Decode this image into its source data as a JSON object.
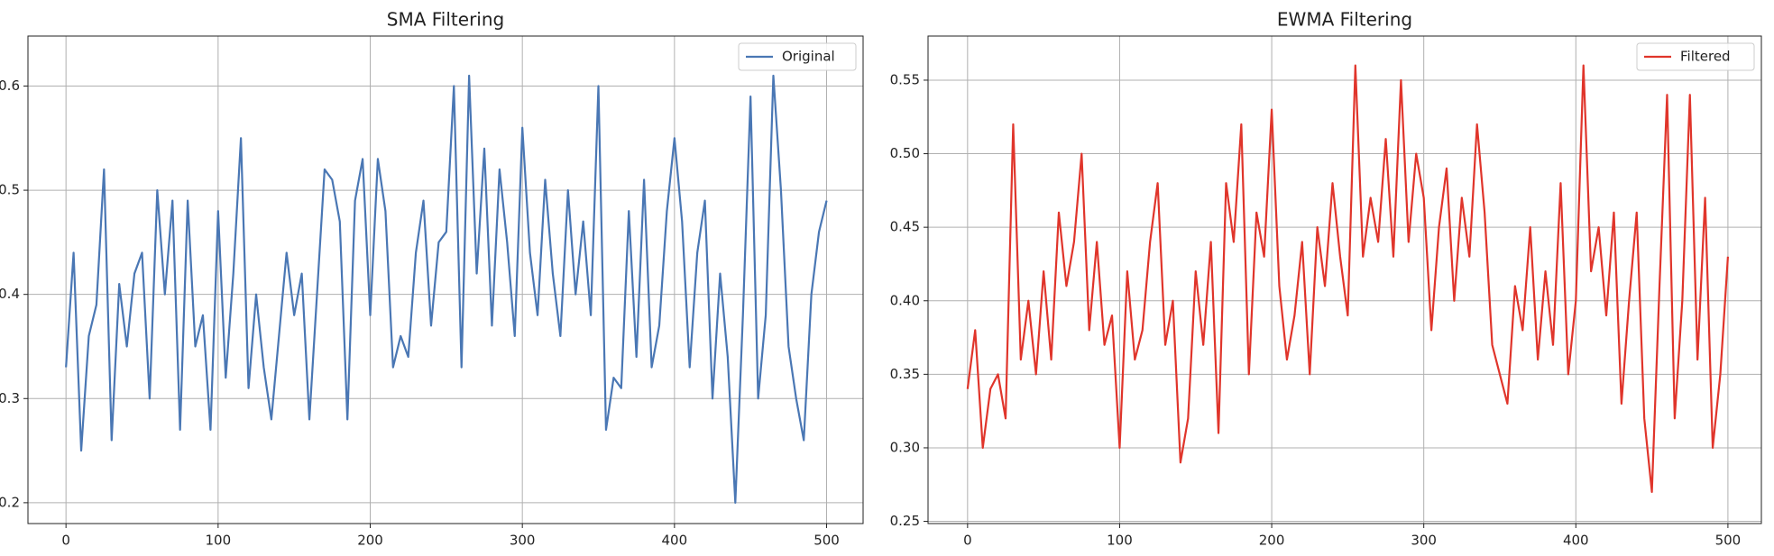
{
  "chart_data": [
    {
      "type": "line",
      "title": "SMA Filtering",
      "x": [
        0,
        5,
        10,
        15,
        20,
        25,
        30,
        35,
        40,
        45,
        50,
        55,
        60,
        65,
        70,
        75,
        80,
        85,
        90,
        95,
        100,
        105,
        110,
        115,
        120,
        125,
        130,
        135,
        140,
        145,
        150,
        155,
        160,
        165,
        170,
        175,
        180,
        185,
        190,
        195,
        200,
        205,
        210,
        215,
        220,
        225,
        230,
        235,
        240,
        245,
        250,
        255,
        260,
        265,
        270,
        275,
        280,
        285,
        290,
        295,
        300,
        305,
        310,
        315,
        320,
        325,
        330,
        335,
        340,
        345,
        350,
        355,
        360,
        365,
        370,
        375,
        380,
        385,
        390,
        395,
        400,
        405,
        410,
        415,
        420,
        425,
        430,
        435,
        440,
        445,
        450,
        455,
        460,
        465,
        470,
        475,
        480,
        485,
        490,
        495,
        500
      ],
      "series": [
        {
          "name": "Original",
          "color": "#4a77b4",
          "values": [
            0.33,
            0.44,
            0.25,
            0.36,
            0.39,
            0.52,
            0.26,
            0.41,
            0.35,
            0.42,
            0.44,
            0.3,
            0.5,
            0.4,
            0.49,
            0.27,
            0.49,
            0.35,
            0.38,
            0.27,
            0.48,
            0.32,
            0.42,
            0.55,
            0.31,
            0.4,
            0.33,
            0.28,
            0.36,
            0.44,
            0.38,
            0.42,
            0.28,
            0.4,
            0.52,
            0.51,
            0.47,
            0.28,
            0.49,
            0.53,
            0.38,
            0.53,
            0.48,
            0.33,
            0.36,
            0.34,
            0.44,
            0.49,
            0.37,
            0.45,
            0.46,
            0.6,
            0.33,
            0.61,
            0.42,
            0.54,
            0.37,
            0.52,
            0.45,
            0.36,
            0.56,
            0.44,
            0.38,
            0.51,
            0.42,
            0.36,
            0.5,
            0.4,
            0.47,
            0.38,
            0.6,
            0.27,
            0.32,
            0.31,
            0.48,
            0.34,
            0.51,
            0.33,
            0.37,
            0.48,
            0.55,
            0.47,
            0.33,
            0.44,
            0.49,
            0.3,
            0.42,
            0.34,
            0.2,
            0.38,
            0.59,
            0.3,
            0.38,
            0.61,
            0.5,
            0.35,
            0.3,
            0.26,
            0.4,
            0.46,
            0.49
          ]
        }
      ],
      "xlim": [
        -25,
        524
      ],
      "ylim": [
        0.18,
        0.648
      ],
      "xticks": [
        0,
        100,
        200,
        300,
        400,
        500
      ],
      "yticks": [
        0.2,
        0.3,
        0.4,
        0.5,
        0.6
      ],
      "grid": true,
      "legend": "upper right"
    },
    {
      "type": "line",
      "title": "EWMA Filtering",
      "x": [
        0,
        5,
        10,
        15,
        20,
        25,
        30,
        35,
        40,
        45,
        50,
        55,
        60,
        65,
        70,
        75,
        80,
        85,
        90,
        95,
        100,
        105,
        110,
        115,
        120,
        125,
        130,
        135,
        140,
        145,
        150,
        155,
        160,
        165,
        170,
        175,
        180,
        185,
        190,
        195,
        200,
        205,
        210,
        215,
        220,
        225,
        230,
        235,
        240,
        245,
        250,
        255,
        260,
        265,
        270,
        275,
        280,
        285,
        290,
        295,
        300,
        305,
        310,
        315,
        320,
        325,
        330,
        335,
        340,
        345,
        350,
        355,
        360,
        365,
        370,
        375,
        380,
        385,
        390,
        395,
        400,
        405,
        410,
        415,
        420,
        425,
        430,
        435,
        440,
        445,
        450,
        455,
        460,
        465,
        470,
        475,
        480,
        485,
        490,
        495,
        500
      ],
      "series": [
        {
          "name": "Filtered",
          "color": "#e0352b",
          "values": [
            0.34,
            0.38,
            0.3,
            0.34,
            0.35,
            0.32,
            0.52,
            0.36,
            0.4,
            0.35,
            0.42,
            0.36,
            0.46,
            0.41,
            0.44,
            0.5,
            0.38,
            0.44,
            0.37,
            0.39,
            0.3,
            0.42,
            0.36,
            0.38,
            0.44,
            0.48,
            0.37,
            0.4,
            0.29,
            0.32,
            0.42,
            0.37,
            0.44,
            0.31,
            0.48,
            0.44,
            0.52,
            0.35,
            0.46,
            0.43,
            0.53,
            0.41,
            0.36,
            0.39,
            0.44,
            0.35,
            0.45,
            0.41,
            0.48,
            0.43,
            0.39,
            0.56,
            0.43,
            0.47,
            0.44,
            0.51,
            0.43,
            0.55,
            0.44,
            0.5,
            0.47,
            0.38,
            0.45,
            0.49,
            0.4,
            0.47,
            0.43,
            0.52,
            0.46,
            0.37,
            0.35,
            0.33,
            0.41,
            0.38,
            0.45,
            0.36,
            0.42,
            0.37,
            0.48,
            0.35,
            0.4,
            0.56,
            0.42,
            0.45,
            0.39,
            0.46,
            0.33,
            0.4,
            0.46,
            0.32,
            0.27,
            0.41,
            0.54,
            0.32,
            0.4,
            0.54,
            0.36,
            0.47,
            0.3,
            0.35,
            0.43
          ]
        }
      ],
      "xlim": [
        -26,
        522
      ],
      "ylim": [
        0.2485,
        0.58
      ],
      "xticks": [
        0,
        100,
        200,
        300,
        400,
        500
      ],
      "yticks": [
        0.25,
        {
          "value": 0.3,
          "label": "0.30"
        },
        0.35,
        {
          "value": 0.4,
          "label": "0.40"
        },
        0.45,
        {
          "value": 0.5,
          "label": "0.50"
        },
        0.55
      ],
      "grid": true,
      "legend": "upper right"
    }
  ]
}
